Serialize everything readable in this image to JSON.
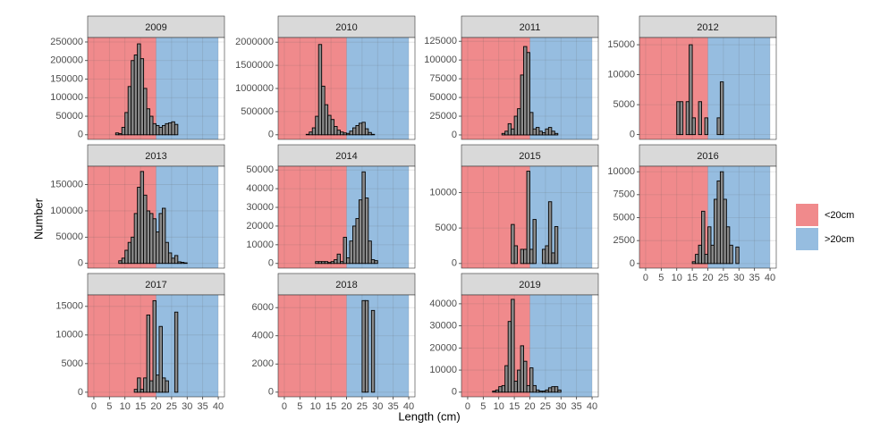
{
  "x_label": "Length (cm)",
  "y_label": "Number",
  "legend": [
    {
      "name": "<20cm",
      "color": "#f08a8c",
      "from": -2,
      "to": 20
    },
    {
      "name": ">20cm",
      "color": "#96bde0",
      "from": 20,
      "to": 40
    }
  ],
  "chart_data": [
    {
      "type": "histogram",
      "title": "2009",
      "bins": [
        7,
        8,
        9,
        10,
        11,
        12,
        13,
        14,
        15,
        16,
        17,
        18,
        19,
        20,
        21,
        22,
        23,
        24,
        25,
        26,
        27,
        28,
        29,
        30,
        31,
        32
      ],
      "values": [
        5000,
        3000,
        20000,
        60000,
        130000,
        200000,
        215000,
        245000,
        205000,
        125000,
        70000,
        50000,
        30000,
        25000,
        20000,
        25000,
        30000,
        32000,
        35000,
        28000,
        0,
        0,
        0,
        0,
        0
      ],
      "xlim": [
        -2,
        42
      ],
      "xticks": [
        0,
        5,
        10,
        15,
        20,
        25,
        30,
        35,
        40
      ],
      "ylim": [
        -12500,
        262000
      ],
      "yticks": [
        0,
        50000,
        100000,
        150000,
        200000,
        250000
      ]
    },
    {
      "type": "histogram",
      "title": "2010",
      "bins": [
        7,
        8,
        9,
        10,
        11,
        12,
        13,
        14,
        15,
        16,
        17,
        18,
        19,
        20,
        21,
        22,
        23,
        24,
        25,
        26,
        27,
        28,
        29,
        30,
        31,
        32
      ],
      "values": [
        10000,
        60000,
        150000,
        400000,
        1950000,
        1050000,
        650000,
        420000,
        330000,
        180000,
        100000,
        60000,
        40000,
        30000,
        80000,
        150000,
        200000,
        250000,
        270000,
        130000,
        50000,
        10000,
        0,
        0,
        0
      ],
      "xlim": [
        -2,
        42
      ],
      "xticks": [
        0,
        5,
        10,
        15,
        20,
        25,
        30,
        35,
        40
      ],
      "ylim": [
        -100000,
        2100000
      ],
      "yticks": [
        0,
        500000,
        1000000,
        1500000,
        2000000
      ]
    },
    {
      "type": "histogram",
      "title": "2011",
      "bins": [
        7,
        8,
        9,
        10,
        11,
        12,
        13,
        14,
        15,
        16,
        17,
        18,
        19,
        20,
        21,
        22,
        23,
        24,
        25,
        26,
        27,
        28,
        29,
        30,
        31,
        32
      ],
      "values": [
        0,
        0,
        0,
        0,
        2000,
        5000,
        15000,
        8000,
        25000,
        35000,
        80000,
        118000,
        110000,
        30000,
        8000,
        10000,
        5000,
        3000,
        8000,
        10000,
        5000,
        2000,
        0,
        0,
        0
      ],
      "xlim": [
        -2,
        42
      ],
      "xticks": [
        0,
        5,
        10,
        15,
        20,
        25,
        30,
        35,
        40
      ],
      "ylim": [
        -6000,
        130000
      ],
      "yticks": [
        0,
        25000,
        50000,
        75000,
        100000,
        125000
      ]
    },
    {
      "type": "histogram",
      "title": "2012",
      "bins": [
        7,
        8,
        9,
        10,
        11,
        12,
        13,
        14,
        15,
        16,
        17,
        18,
        19,
        20,
        21,
        22,
        23,
        24,
        25,
        26,
        27,
        28,
        29,
        30,
        31,
        32
      ],
      "values": [
        0,
        0,
        0,
        5500,
        5500,
        0,
        5500,
        15000,
        2800,
        0,
        5500,
        0,
        2800,
        0,
        0,
        0,
        2800,
        8800,
        0,
        0,
        0,
        0,
        0,
        0,
        0
      ],
      "xlim": [
        -2,
        42
      ],
      "xticks": [
        0,
        5,
        10,
        15,
        20,
        25,
        30,
        35,
        40
      ],
      "ylim": [
        -800,
        16200
      ],
      "yticks": [
        0,
        5000,
        10000,
        15000
      ]
    },
    {
      "type": "histogram",
      "title": "2013",
      "bins": [
        7,
        8,
        9,
        10,
        11,
        12,
        13,
        14,
        15,
        16,
        17,
        18,
        19,
        20,
        21,
        22,
        23,
        24,
        25,
        26,
        27,
        28,
        29,
        30,
        31,
        32
      ],
      "values": [
        0,
        5000,
        10000,
        25000,
        40000,
        50000,
        95000,
        145000,
        175000,
        130000,
        100000,
        95000,
        85000,
        60000,
        95000,
        105000,
        40000,
        20000,
        10000,
        15000,
        3000,
        2000,
        1000,
        0,
        0
      ],
      "xlim": [
        -2,
        42
      ],
      "xticks": [
        0,
        5,
        10,
        15,
        20,
        25,
        30,
        35,
        40
      ],
      "ylim": [
        -9000,
        185000
      ],
      "yticks": [
        0,
        50000,
        100000,
        150000
      ]
    },
    {
      "type": "histogram",
      "title": "2014",
      "bins": [
        7,
        8,
        9,
        10,
        11,
        12,
        13,
        14,
        15,
        16,
        17,
        18,
        19,
        20,
        21,
        22,
        23,
        24,
        25,
        26,
        27,
        28,
        29,
        30,
        31,
        32
      ],
      "values": [
        0,
        0,
        0,
        1000,
        1000,
        1000,
        1000,
        500,
        1000,
        2000,
        5000,
        1000,
        14000,
        3000,
        12000,
        20000,
        24000,
        34000,
        49000,
        35000,
        12000,
        2000,
        1500,
        0,
        0
      ],
      "xlim": [
        -2,
        42
      ],
      "xticks": [
        0,
        5,
        10,
        15,
        20,
        25,
        30,
        35,
        40
      ],
      "ylim": [
        -2500,
        52000
      ],
      "yticks": [
        0,
        10000,
        20000,
        30000,
        40000,
        50000
      ]
    },
    {
      "type": "histogram",
      "title": "2015",
      "bins": [
        7,
        8,
        9,
        10,
        11,
        12,
        13,
        14,
        15,
        16,
        17,
        18,
        19,
        20,
        21,
        22,
        23,
        24,
        25,
        26,
        27,
        28,
        29,
        30,
        31,
        32
      ],
      "values": [
        0,
        0,
        0,
        0,
        0,
        0,
        0,
        5500,
        2500,
        0,
        2000,
        2000,
        13000,
        2000,
        6200,
        0,
        0,
        2000,
        2500,
        8700,
        1500,
        5200,
        0,
        0,
        0
      ],
      "xlim": [
        -2,
        42
      ],
      "xticks": [
        0,
        5,
        10,
        15,
        20,
        25,
        30,
        35,
        40
      ],
      "ylim": [
        -650,
        13700
      ],
      "yticks": [
        0,
        5000,
        10000
      ]
    },
    {
      "type": "histogram",
      "title": "2016",
      "bins": [
        7,
        8,
        9,
        10,
        11,
        12,
        13,
        14,
        15,
        16,
        17,
        18,
        19,
        20,
        21,
        22,
        23,
        24,
        25,
        26,
        27,
        28,
        29,
        30,
        31,
        32
      ],
      "values": [
        0,
        0,
        0,
        0,
        0,
        0,
        0,
        0,
        200,
        1000,
        2000,
        5700,
        1000,
        4000,
        2000,
        7000,
        9000,
        10000,
        7000,
        4000,
        2000,
        0,
        1800,
        0,
        0
      ],
      "xlim": [
        -2,
        42
      ],
      "xticks": [
        0,
        5,
        10,
        15,
        20,
        25,
        30,
        35,
        40
      ],
      "ylim": [
        -500,
        10600
      ],
      "yticks": [
        0,
        2500,
        5000,
        7500,
        10000
      ]
    },
    {
      "type": "histogram",
      "title": "2017",
      "bins": [
        7,
        8,
        9,
        10,
        11,
        12,
        13,
        14,
        15,
        16,
        17,
        18,
        19,
        20,
        21,
        22,
        23,
        24,
        25,
        26,
        27,
        28,
        29,
        30,
        31,
        32
      ],
      "values": [
        0,
        0,
        0,
        0,
        0,
        0,
        500,
        2500,
        500,
        2500,
        13500,
        2000,
        16000,
        3000,
        11500,
        2500,
        2000,
        0,
        0,
        14000,
        0,
        0,
        0,
        0,
        0
      ],
      "xlim": [
        -2,
        42
      ],
      "xticks": [
        0,
        5,
        10,
        15,
        20,
        25,
        30,
        35,
        40
      ],
      "ylim": [
        -800,
        17000
      ],
      "yticks": [
        0,
        5000,
        10000,
        15000
      ]
    },
    {
      "type": "histogram",
      "title": "2018",
      "bins": [
        7,
        8,
        9,
        10,
        11,
        12,
        13,
        14,
        15,
        16,
        17,
        18,
        19,
        20,
        21,
        22,
        23,
        24,
        25,
        26,
        27,
        28,
        29,
        30,
        31,
        32
      ],
      "values": [
        0,
        0,
        0,
        0,
        0,
        0,
        0,
        0,
        0,
        0,
        0,
        0,
        0,
        0,
        0,
        0,
        0,
        0,
        6500,
        6500,
        0,
        5800,
        0,
        0,
        0
      ],
      "xlim": [
        -2,
        42
      ],
      "xticks": [
        0,
        5,
        10,
        15,
        20,
        25,
        30,
        35,
        40
      ],
      "ylim": [
        -330,
        6900
      ],
      "yticks": [
        0,
        2000,
        4000,
        6000
      ]
    },
    {
      "type": "histogram",
      "title": "2019",
      "bins": [
        7,
        8,
        9,
        10,
        11,
        12,
        13,
        14,
        15,
        16,
        17,
        18,
        19,
        20,
        21,
        22,
        23,
        24,
        25,
        26,
        27,
        28,
        29,
        30,
        31,
        32
      ],
      "values": [
        0,
        500,
        1000,
        2500,
        3000,
        12000,
        32000,
        42000,
        5000,
        10000,
        21000,
        14000,
        3000,
        11000,
        3000,
        1000,
        500,
        500,
        1000,
        2000,
        2500,
        2500,
        1000,
        0,
        0
      ],
      "xlim": [
        -2,
        42
      ],
      "xticks": [
        0,
        5,
        10,
        15,
        20,
        25,
        30,
        35,
        40
      ],
      "ylim": [
        -2100,
        44000
      ],
      "yticks": [
        0,
        10000,
        20000,
        30000,
        40000
      ]
    }
  ]
}
